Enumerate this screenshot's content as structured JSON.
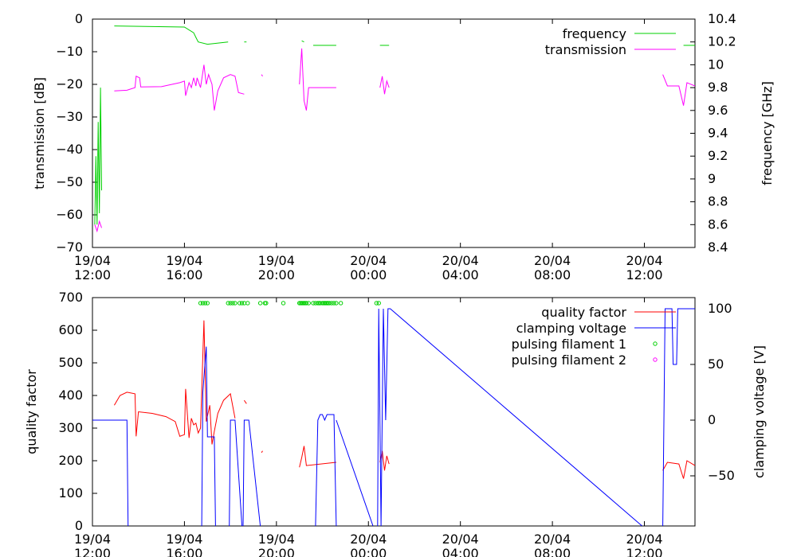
{
  "chart_data": [
    {
      "type": "line",
      "x_tick_labels": [
        [
          "19/04",
          "12:00"
        ],
        [
          "19/04",
          "16:00"
        ],
        [
          "19/04",
          "20:00"
        ],
        [
          "20/04",
          "00:00"
        ],
        [
          "20/04",
          "04:00"
        ],
        [
          "20/04",
          "08:00"
        ],
        [
          "20/04",
          "12:00"
        ]
      ],
      "xlim_hours": [
        12,
        38.2
      ],
      "ylabel_left": "transmission [dB]",
      "ylabel_right": "frequency [GHz]",
      "ylim_left": [
        -70,
        0
      ],
      "ylim_right": [
        8.4,
        10.4
      ],
      "yticks_left": [
        "0",
        "−10",
        "−20",
        "−30",
        "−40",
        "−50",
        "−60",
        "−70"
      ],
      "yticks_right": [
        "10.4",
        "10.2",
        "10",
        "9.8",
        "9.6",
        "9.4",
        "9.2",
        "9",
        "8.8",
        "8.6",
        "8.4"
      ],
      "legend_position": "top-right",
      "series": [
        {
          "name": "frequency",
          "axis": "right",
          "color": "#00d000",
          "segments": [
            [
              [
                12.1,
                8.6
              ],
              [
                12.15,
                9.2
              ],
              [
                12.2,
                8.6
              ],
              [
                12.25,
                9.5
              ],
              [
                12.3,
                8.7
              ],
              [
                12.35,
                9.8
              ],
              [
                12.4,
                8.9
              ]
            ],
            [
              [
                12.95,
                10.34
              ],
              [
                16.0,
                10.33
              ],
              [
                16.4,
                10.28
              ],
              [
                16.5,
                10.24
              ],
              [
                16.6,
                10.2
              ],
              [
                17.0,
                10.18
              ],
              [
                17.9,
                10.2
              ]
            ],
            [
              [
                18.6,
                10.2
              ],
              [
                18.7,
                10.2
              ]
            ],
            [
              [
                21.1,
                10.21
              ],
              [
                21.2,
                10.2
              ]
            ],
            [
              [
                21.6,
                10.17
              ],
              [
                22.6,
                10.17
              ]
            ],
            [
              [
                24.5,
                10.17
              ],
              [
                24.9,
                10.17
              ]
            ],
            [
              [
                37.7,
                10.17
              ],
              [
                38.2,
                10.17
              ]
            ]
          ]
        },
        {
          "name": "transmission",
          "axis": "left",
          "color": "#ff00ff",
          "segments": [
            [
              [
                12.1,
                -63
              ],
              [
                12.2,
                -65
              ],
              [
                12.3,
                -62
              ],
              [
                12.4,
                -64
              ]
            ],
            [
              [
                12.95,
                -22
              ],
              [
                13.5,
                -21.8
              ],
              [
                13.85,
                -21
              ],
              [
                13.9,
                -17.5
              ],
              [
                14.05,
                -18
              ],
              [
                14.1,
                -20.8
              ],
              [
                15.0,
                -20.7
              ],
              [
                15.8,
                -19.5
              ],
              [
                16.0,
                -19
              ],
              [
                16.05,
                -23.5
              ],
              [
                16.2,
                -19.5
              ],
              [
                16.3,
                -21
              ],
              [
                16.4,
                -18
              ],
              [
                16.5,
                -20.5
              ],
              [
                16.55,
                -18
              ],
              [
                16.7,
                -21
              ],
              [
                16.85,
                -14
              ],
              [
                16.95,
                -20
              ],
              [
                17.05,
                -17
              ],
              [
                17.2,
                -20
              ],
              [
                17.3,
                -28
              ],
              [
                17.45,
                -22
              ],
              [
                17.7,
                -18
              ],
              [
                18.0,
                -17
              ],
              [
                18.2,
                -17.5
              ],
              [
                18.35,
                -22.5
              ],
              [
                18.6,
                -23
              ]
            ],
            [
              [
                19.35,
                -17
              ],
              [
                19.4,
                -17.5
              ]
            ],
            [
              [
                21.0,
                -20
              ],
              [
                21.1,
                -9
              ],
              [
                21.2,
                -25
              ],
              [
                21.3,
                -28
              ],
              [
                21.4,
                -21
              ],
              [
                22.6,
                -21
              ]
            ],
            [
              [
                24.5,
                -21
              ],
              [
                24.6,
                -17.5
              ],
              [
                24.7,
                -23
              ],
              [
                24.8,
                -19
              ],
              [
                24.9,
                -21
              ]
            ],
            [
              [
                36.8,
                -17
              ],
              [
                37.0,
                -20.5
              ],
              [
                37.5,
                -20.5
              ],
              [
                37.7,
                -26.5
              ],
              [
                37.85,
                -19.5
              ],
              [
                38.2,
                -20.5
              ]
            ]
          ]
        }
      ]
    },
    {
      "type": "line",
      "x_tick_labels": [
        [
          "19/04",
          "12:00"
        ],
        [
          "19/04",
          "16:00"
        ],
        [
          "19/04",
          "20:00"
        ],
        [
          "20/04",
          "00:00"
        ],
        [
          "20/04",
          "04:00"
        ],
        [
          "20/04",
          "08:00"
        ],
        [
          "20/04",
          "12:00"
        ]
      ],
      "xlim_hours": [
        12,
        38.2
      ],
      "ylabel_left": "quality factor",
      "ylabel_right": "clamping voltage [V]",
      "ylim_left": [
        0,
        700
      ],
      "ylim_right": [
        -95,
        110
      ],
      "yticks_left": [
        "700",
        "600",
        "500",
        "400",
        "300",
        "200",
        "100",
        "0"
      ],
      "yticks_right": [
        "100",
        "50",
        "0",
        "−50"
      ],
      "legend_position": "top-right",
      "series": [
        {
          "name": "quality factor",
          "axis": "left",
          "color": "#ff0000",
          "segments": [
            [
              [
                12.95,
                370
              ],
              [
                13.2,
                400
              ],
              [
                13.5,
                410
              ],
              [
                13.85,
                405
              ],
              [
                13.9,
                275
              ],
              [
                14.0,
                350
              ],
              [
                14.6,
                345
              ],
              [
                15.2,
                335
              ],
              [
                15.6,
                320
              ],
              [
                15.8,
                275
              ],
              [
                16.0,
                280
              ],
              [
                16.05,
                420
              ],
              [
                16.2,
                270
              ],
              [
                16.3,
                330
              ],
              [
                16.4,
                310
              ],
              [
                16.5,
                315
              ],
              [
                16.6,
                285
              ],
              [
                16.7,
                300
              ],
              [
                16.85,
                630
              ],
              [
                16.95,
                320
              ],
              [
                17.1,
                370
              ],
              [
                17.2,
                250
              ],
              [
                17.3,
                290
              ],
              [
                17.45,
                345
              ],
              [
                17.7,
                385
              ],
              [
                18.0,
                405
              ],
              [
                18.2,
                330
              ]
            ],
            [
              [
                18.6,
                385
              ],
              [
                18.7,
                375
              ]
            ],
            [
              [
                19.35,
                225
              ],
              [
                19.4,
                230
              ]
            ],
            [
              [
                21.0,
                180
              ],
              [
                21.1,
                210
              ],
              [
                21.2,
                245
              ],
              [
                21.3,
                185
              ],
              [
                22.6,
                195
              ]
            ],
            [
              [
                24.5,
                195
              ],
              [
                24.6,
                230
              ],
              [
                24.7,
                170
              ],
              [
                24.8,
                215
              ],
              [
                24.9,
                190
              ]
            ],
            [
              [
                36.8,
                170
              ],
              [
                37.0,
                195
              ],
              [
                37.5,
                190
              ],
              [
                37.7,
                145
              ],
              [
                37.85,
                200
              ],
              [
                38.2,
                185
              ]
            ]
          ]
        },
        {
          "name": "clamping voltage",
          "axis": "right",
          "color": "#0000ff",
          "segments": [
            [
              [
                12.0,
                0
              ],
              [
                13.5,
                0
              ],
              [
                13.55,
                -95
              ]
            ],
            [
              [
                16.75,
                -95
              ],
              [
                16.8,
                25
              ],
              [
                16.95,
                66
              ],
              [
                17.0,
                -15
              ],
              [
                17.3,
                -15
              ],
              [
                17.35,
                -95
              ]
            ],
            [
              [
                17.95,
                -95
              ],
              [
                18.0,
                0
              ],
              [
                18.2,
                0
              ],
              [
                18.5,
                -95
              ]
            ],
            [
              [
                18.55,
                -95
              ],
              [
                18.6,
                0
              ],
              [
                18.8,
                0
              ],
              [
                19.3,
                -95
              ]
            ],
            [
              [
                21.7,
                -95
              ],
              [
                21.8,
                0
              ],
              [
                21.9,
                5
              ],
              [
                22.0,
                5
              ],
              [
                22.1,
                0
              ],
              [
                22.2,
                5
              ],
              [
                22.5,
                5
              ],
              [
                22.6,
                -95
              ]
            ],
            [
              [
                22.6,
                0
              ],
              [
                24.2,
                -95
              ]
            ],
            [
              [
                24.4,
                -95
              ],
              [
                24.45,
                100
              ],
              [
                24.55,
                -95
              ],
              [
                24.65,
                100
              ],
              [
                24.75,
                0
              ],
              [
                24.85,
                100
              ],
              [
                24.95,
                100
              ],
              [
                35.9,
                -95
              ]
            ],
            [
              [
                36.8,
                -95
              ],
              [
                36.9,
                100
              ],
              [
                37.2,
                100
              ],
              [
                37.25,
                50
              ],
              [
                37.4,
                50
              ],
              [
                37.45,
                100
              ],
              [
                38.2,
                100
              ]
            ]
          ]
        },
        {
          "name": "pulsing filament 1",
          "axis": "left",
          "color": "#00d000",
          "marker": "circle",
          "points": [
            [
              16.7,
              683
            ],
            [
              16.8,
              683
            ],
            [
              16.9,
              683
            ],
            [
              17.0,
              683
            ],
            [
              17.9,
              683
            ],
            [
              18.0,
              683
            ],
            [
              18.1,
              683
            ],
            [
              18.2,
              683
            ],
            [
              18.4,
              683
            ],
            [
              18.5,
              683
            ],
            [
              18.6,
              683
            ],
            [
              18.75,
              683
            ],
            [
              19.3,
              683
            ],
            [
              19.5,
              683
            ],
            [
              19.55,
              683
            ],
            [
              20.3,
              683
            ],
            [
              21.0,
              683
            ],
            [
              21.05,
              683
            ],
            [
              21.1,
              683
            ],
            [
              21.15,
              683
            ],
            [
              21.2,
              683
            ],
            [
              21.25,
              683
            ],
            [
              21.3,
              683
            ],
            [
              21.4,
              683
            ],
            [
              21.6,
              683
            ],
            [
              21.7,
              683
            ],
            [
              21.8,
              683
            ],
            [
              21.85,
              683
            ],
            [
              21.9,
              683
            ],
            [
              22.0,
              683
            ],
            [
              22.05,
              683
            ],
            [
              22.1,
              683
            ],
            [
              22.15,
              683
            ],
            [
              22.2,
              683
            ],
            [
              22.25,
              683
            ],
            [
              22.3,
              683
            ],
            [
              22.4,
              683
            ],
            [
              22.5,
              683
            ],
            [
              22.6,
              683
            ],
            [
              22.8,
              683
            ],
            [
              24.35,
              683
            ],
            [
              24.45,
              683
            ]
          ]
        },
        {
          "name": "pulsing filament 2",
          "axis": "left",
          "color": "#ff00ff",
          "marker": "circle",
          "points": []
        }
      ]
    }
  ]
}
